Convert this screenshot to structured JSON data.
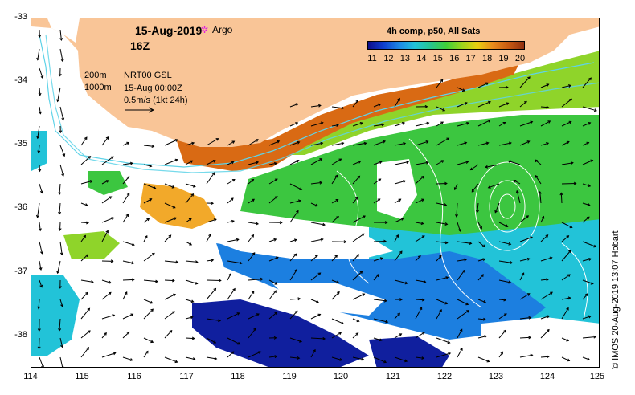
{
  "header": {
    "date": "15-Aug-2019",
    "hour": "16Z",
    "argo_label": "Argo",
    "argo_icon": "✲"
  },
  "colorbar": {
    "title": "4h comp, p50, All Sats",
    "ticks": [
      "11",
      "12",
      "13",
      "14",
      "15",
      "16",
      "17",
      "18",
      "19",
      "20"
    ],
    "colors": [
      "#0d0d8a",
      "#0f3fcf",
      "#1e88e5",
      "#22c3d8",
      "#27c48f",
      "#3fce3a",
      "#9bd41c",
      "#e8cf10",
      "#e8891c",
      "#c85a12",
      "#8f3010"
    ]
  },
  "legend": {
    "depth_200": "200m",
    "depth_1000": "1000m",
    "product": "NRT00 GSL",
    "analysis_time": "15-Aug 00:00Z",
    "vector_scale": "0.5m/s (1kt 24h)"
  },
  "axes": {
    "lat_labels": [
      "-33",
      "-34",
      "-35",
      "-36",
      "-37",
      "-38"
    ],
    "lon_labels": [
      "114",
      "115",
      "116",
      "117",
      "118",
      "119",
      "120",
      "121",
      "122",
      "123",
      "124",
      "125"
    ]
  },
  "credit": "© IMOS 20-Aug-2019 13:07 Hobart",
  "map": {
    "land_color": "#f9c597",
    "water_colors": {
      "warm_shelf": "#d96a14",
      "orange": "#f2a92a",
      "green": "#3cc640",
      "yellowgreen": "#8fd42a",
      "cyan": "#22c3d8",
      "blue": "#1c7fe0",
      "navy": "#101f9e",
      "white": "#ffffff",
      "coast": "#5fd3e8"
    }
  }
}
